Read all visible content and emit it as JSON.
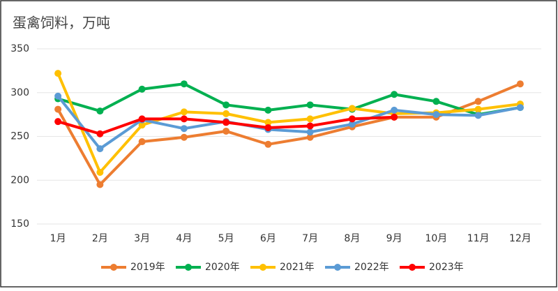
{
  "chart_data": {
    "type": "line",
    "title": "蛋禽饲料，万吨",
    "categories": [
      "1月",
      "2月",
      "3月",
      "4月",
      "5月",
      "6月",
      "7月",
      "8月",
      "9月",
      "10月",
      "11月",
      "12月"
    ],
    "series": [
      {
        "name": "2019年",
        "color": "#ed7d31",
        "values": [
          281,
          195,
          244,
          249,
          256,
          241,
          249,
          261,
          272,
          272,
          290,
          310
        ]
      },
      {
        "name": "2020年",
        "color": "#00b050",
        "values": [
          293,
          279,
          304,
          310,
          286,
          280,
          286,
          281,
          298,
          290,
          275,
          283
        ]
      },
      {
        "name": "2021年",
        "color": "#ffc000",
        "values": [
          322,
          209,
          263,
          278,
          276,
          266,
          270,
          282,
          276,
          277,
          281,
          287
        ]
      },
      {
        "name": "2022年",
        "color": "#5b9bd5",
        "values": [
          296,
          236,
          269,
          259,
          267,
          258,
          255,
          264,
          280,
          275,
          274,
          283
        ]
      },
      {
        "name": "2023年",
        "color": "#ff0000",
        "values": [
          267,
          253,
          270,
          270,
          266,
          260,
          262,
          270,
          272,
          null,
          null,
          null
        ]
      }
    ],
    "ylim": [
      150,
      350
    ],
    "yticks": [
      150,
      200,
      250,
      300,
      350
    ],
    "grid": true
  }
}
